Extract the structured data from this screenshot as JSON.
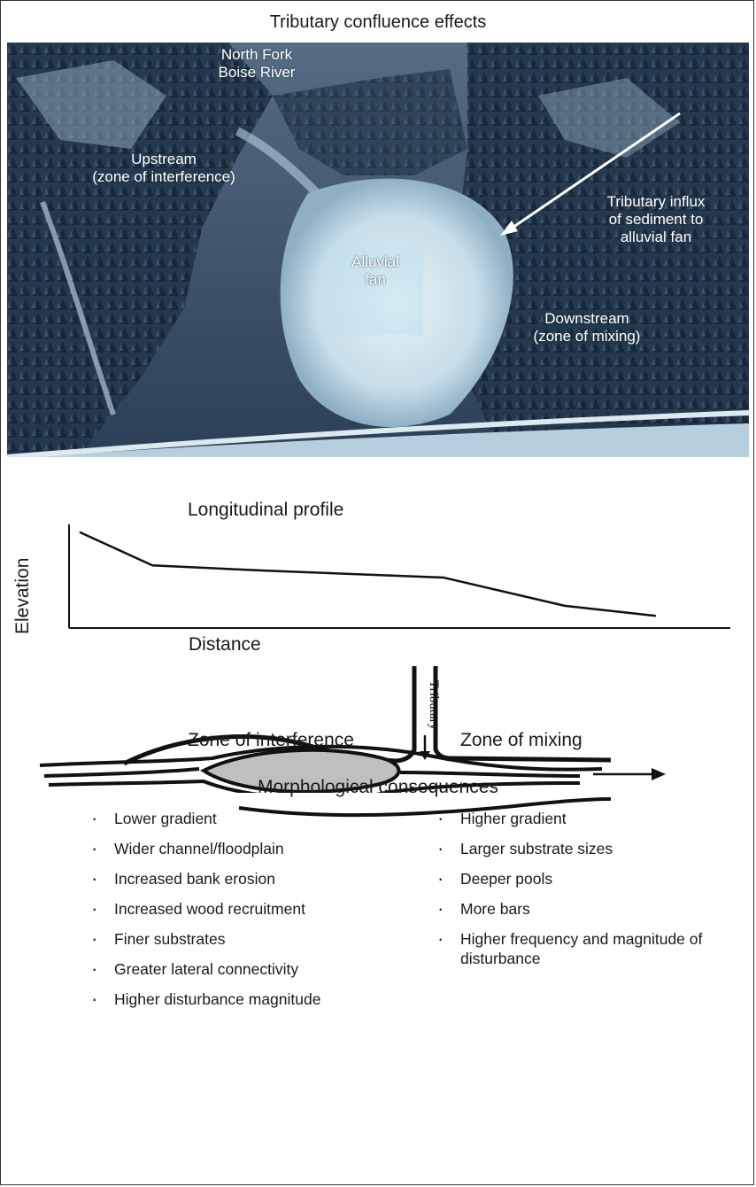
{
  "title": "Tributary confluence effects",
  "photo": {
    "label_river": "North Fork\nBoise River",
    "label_upstream": "Upstream\n(zone of interference)",
    "label_influx": "Tributary influx\nof sediment to\nalluvial fan",
    "label_fan": "Alluvial\nfan",
    "label_downstream": "Downstream\n(zone of mixing)"
  },
  "profile": {
    "title": "Longitudinal profile",
    "xlabel": "Distance",
    "ylabel": "Elevation"
  },
  "chart_data": {
    "type": "line",
    "title": "Longitudinal profile",
    "xlabel": "Distance",
    "ylabel": "Elevation",
    "series": [
      {
        "x": [
          0,
          0.12,
          0.3,
          0.6,
          0.8,
          0.95
        ],
        "y": [
          0.95,
          0.62,
          0.57,
          0.5,
          0.22,
          0.12
        ]
      }
    ],
    "grid": false
  },
  "planform": {
    "left_zone": "Zone of interference",
    "right_zone": "Zone of mixing",
    "tributary_label": "Tributary"
  },
  "consequences": {
    "title": "Morphological consequences",
    "left": [
      "Lower gradient",
      "Wider channel/floodplain",
      "Increased bank erosion",
      "Increased wood recruitment",
      "Finer substrates",
      "Greater lateral connectivity",
      "Higher disturbance magnitude"
    ],
    "right": [
      "Higher gradient",
      "Larger substrate sizes",
      "Deeper pools",
      "More bars",
      "Higher frequency and magnitude of disturbance"
    ]
  },
  "colors": {
    "photo_sky": "#33475e",
    "photo_forest": "#1f3146",
    "photo_fan": "#cfe3ec",
    "label_text": "#ffffff",
    "bar_fill": "#bdbdbd"
  }
}
